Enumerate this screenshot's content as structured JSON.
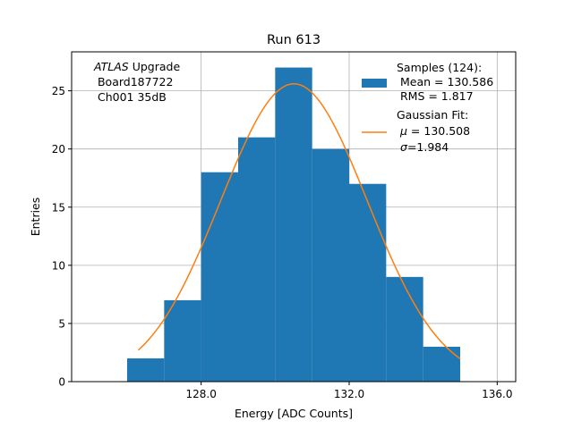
{
  "chart_data": {
    "type": "bar",
    "title": "Run 613",
    "xlabel": "Energy [ADC Counts]",
    "ylabel": "Entries",
    "xlim": [
      124.5,
      136.5
    ],
    "ylim": [
      0,
      28.35
    ],
    "xticks": [
      128.0,
      132.0,
      136.0
    ],
    "xtick_labels": [
      "128.0",
      "132.0",
      "136.0"
    ],
    "yticks": [
      0,
      5,
      10,
      15,
      20,
      25
    ],
    "ytick_labels": [
      "0",
      "5",
      "10",
      "15",
      "20",
      "25"
    ],
    "grid": true,
    "legend_position": "top-right",
    "bins": [
      {
        "x0": 126.0,
        "x1": 127.0,
        "count": 2
      },
      {
        "x0": 127.0,
        "x1": 128.0,
        "count": 7
      },
      {
        "x0": 128.0,
        "x1": 129.0,
        "count": 18
      },
      {
        "x0": 129.0,
        "x1": 130.0,
        "count": 21
      },
      {
        "x0": 130.0,
        "x1": 131.0,
        "count": 27
      },
      {
        "x0": 131.0,
        "x1": 132.0,
        "count": 20
      },
      {
        "x0": 132.0,
        "x1": 133.0,
        "count": 17
      },
      {
        "x0": 133.0,
        "x1": 134.0,
        "count": 9
      },
      {
        "x0": 134.0,
        "x1": 135.0,
        "count": 3
      }
    ],
    "fit": {
      "amplitude": 25.6,
      "mu": 130.508,
      "sigma": 1.984,
      "x_range": [
        126.3,
        135.0
      ]
    },
    "colors": {
      "histogram": "#1f77b4",
      "fit": "#ff7f0e",
      "grid": "#b0b0b0"
    },
    "annotation": {
      "line1_italic": "ATLAS",
      "line1_rest": " Upgrade",
      "line2": " Board187722",
      "line3": " Ch001 35dB"
    },
    "legend": {
      "histogram_line1": "Samples (124):",
      "histogram_line2": " Mean = 130.586",
      "histogram_line3": " RMS = 1.817",
      "fit_line1": "Gaussian Fit:",
      "fit_line2_sym": "μ",
      "fit_line2_rest": " = 130.508",
      "fit_line3_sym": "σ",
      "fit_line3_rest": "=1.984"
    }
  }
}
